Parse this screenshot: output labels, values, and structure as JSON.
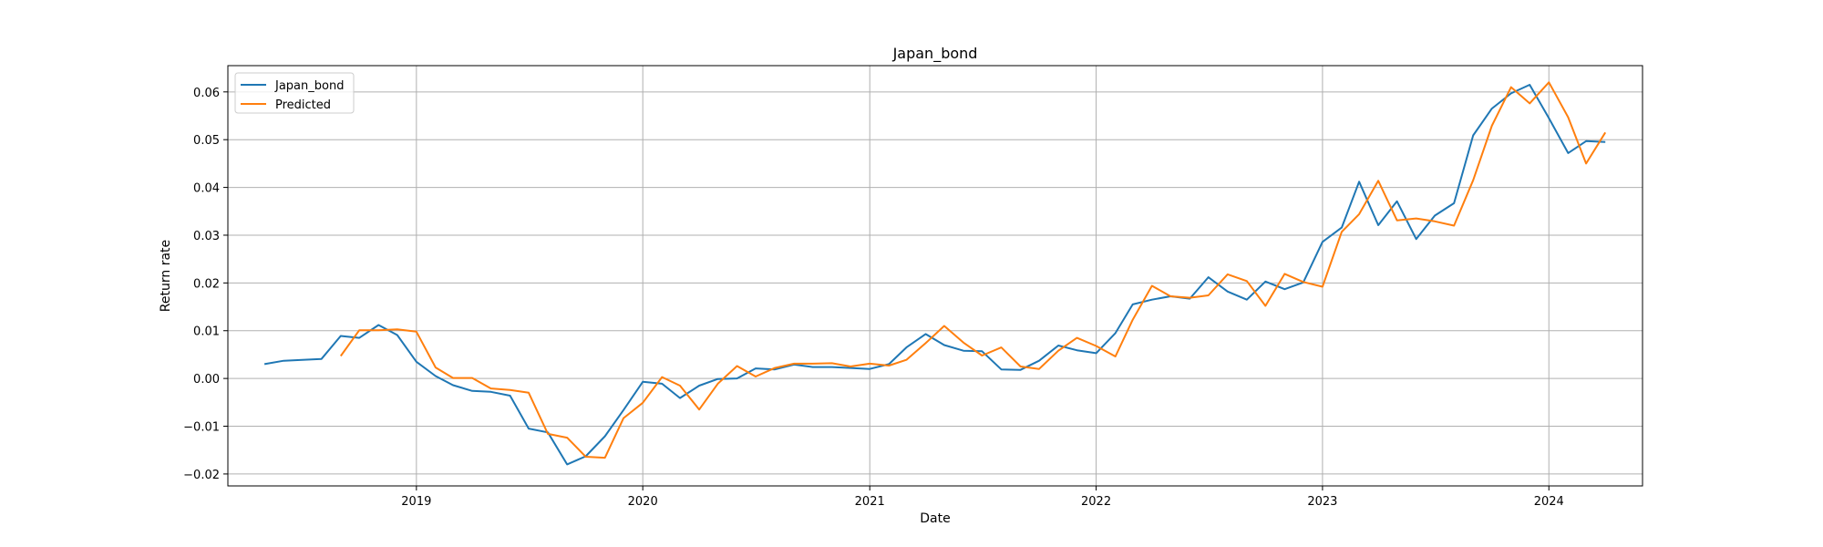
{
  "chart_data": {
    "type": "line",
    "title": "Japan_bond",
    "xlabel": "Date",
    "ylabel": "Return rate",
    "grid": true,
    "legend_position": "upper-left",
    "xlim": [
      "2018-03-03",
      "2024-05-31"
    ],
    "ylim": [
      -0.0225,
      0.0655
    ],
    "x_ticks": [
      "2019-01-01",
      "2020-01-01",
      "2021-01-01",
      "2022-01-01",
      "2023-01-01",
      "2024-01-01"
    ],
    "x_tick_labels": [
      "2019",
      "2020",
      "2021",
      "2022",
      "2023",
      "2024"
    ],
    "y_ticks": [
      -0.02,
      -0.01,
      0.0,
      0.01,
      0.02,
      0.03,
      0.04,
      0.05,
      0.06
    ],
    "y_tick_labels": [
      "−0.02",
      "−0.01",
      "0.00",
      "0.01",
      "0.02",
      "0.03",
      "0.04",
      "0.05",
      "0.06"
    ],
    "series": [
      {
        "name": "Japan_bond",
        "color": "#1f77b4",
        "x": [
          "2018-05-01",
          "2018-06-01",
          "2018-07-01",
          "2018-08-01",
          "2018-09-01",
          "2018-10-01",
          "2018-11-01",
          "2018-12-01",
          "2019-01-01",
          "2019-02-01",
          "2019-03-01",
          "2019-04-01",
          "2019-05-01",
          "2019-06-01",
          "2019-07-01",
          "2019-08-01",
          "2019-09-01",
          "2019-10-01",
          "2019-11-01",
          "2019-12-01",
          "2020-01-01",
          "2020-02-01",
          "2020-03-01",
          "2020-04-01",
          "2020-05-01",
          "2020-06-01",
          "2020-07-01",
          "2020-08-01",
          "2020-09-01",
          "2020-10-01",
          "2020-11-01",
          "2020-12-01",
          "2021-01-01",
          "2021-02-01",
          "2021-03-01",
          "2021-04-01",
          "2021-05-01",
          "2021-06-01",
          "2021-07-01",
          "2021-08-01",
          "2021-09-01",
          "2021-10-01",
          "2021-11-01",
          "2021-12-01",
          "2022-01-01",
          "2022-02-01",
          "2022-03-01",
          "2022-04-01",
          "2022-05-01",
          "2022-06-01",
          "2022-07-01",
          "2022-08-01",
          "2022-09-01",
          "2022-10-01",
          "2022-11-01",
          "2022-12-01",
          "2023-01-01",
          "2023-02-01",
          "2023-03-01",
          "2023-04-01",
          "2023-05-01",
          "2023-06-01",
          "2023-07-01",
          "2023-08-01",
          "2023-09-01",
          "2023-10-01",
          "2023-11-01",
          "2023-12-01",
          "2024-01-01",
          "2024-02-01",
          "2024-03-01",
          "2024-04-01"
        ],
        "values": [
          0.003,
          0.0037,
          0.0039,
          0.0041,
          0.0089,
          0.0085,
          0.0112,
          0.0091,
          0.0035,
          0.0005,
          -0.0014,
          -0.0026,
          -0.0028,
          -0.0036,
          -0.0105,
          -0.0113,
          -0.018,
          -0.0163,
          -0.0121,
          -0.0066,
          -0.0007,
          -0.0011,
          -0.0041,
          -0.0015,
          -0.0001,
          0.0,
          0.0021,
          0.0019,
          0.0029,
          0.0024,
          0.0024,
          0.0022,
          0.002,
          0.003,
          0.0065,
          0.0093,
          0.007,
          0.0058,
          0.0057,
          0.0019,
          0.0018,
          0.0037,
          0.0069,
          0.0059,
          0.0053,
          0.0095,
          0.0155,
          0.0165,
          0.0172,
          0.0167,
          0.0212,
          0.0182,
          0.0165,
          0.0203,
          0.0187,
          0.0201,
          0.0286,
          0.0316,
          0.0412,
          0.0321,
          0.0371,
          0.0292,
          0.0341,
          0.0367,
          0.0509,
          0.0565,
          0.0597,
          0.0615,
          0.0545,
          0.0472,
          0.0497,
          0.0495
        ]
      },
      {
        "name": "Predicted",
        "color": "#ff7f0e",
        "x": [
          "2018-09-01",
          "2018-10-01",
          "2018-11-01",
          "2018-12-01",
          "2019-01-01",
          "2019-02-01",
          "2019-03-01",
          "2019-04-01",
          "2019-05-01",
          "2019-06-01",
          "2019-07-01",
          "2019-08-01",
          "2019-09-01",
          "2019-10-01",
          "2019-11-01",
          "2019-12-01",
          "2020-01-01",
          "2020-02-01",
          "2020-03-01",
          "2020-04-01",
          "2020-05-01",
          "2020-06-01",
          "2020-07-01",
          "2020-08-01",
          "2020-09-01",
          "2020-10-01",
          "2020-11-01",
          "2020-12-01",
          "2021-01-01",
          "2021-02-01",
          "2021-03-01",
          "2021-04-01",
          "2021-05-01",
          "2021-06-01",
          "2021-07-01",
          "2021-08-01",
          "2021-09-01",
          "2021-10-01",
          "2021-11-01",
          "2021-12-01",
          "2022-01-01",
          "2022-02-01",
          "2022-03-01",
          "2022-04-01",
          "2022-05-01",
          "2022-06-01",
          "2022-07-01",
          "2022-08-01",
          "2022-09-01",
          "2022-10-01",
          "2022-11-01",
          "2022-12-01",
          "2023-01-01",
          "2023-02-01",
          "2023-03-01",
          "2023-04-01",
          "2023-05-01",
          "2023-06-01",
          "2023-07-01",
          "2023-08-01",
          "2023-09-01",
          "2023-10-01",
          "2023-11-01",
          "2023-12-01",
          "2024-01-01",
          "2024-02-01",
          "2024-03-01",
          "2024-04-01"
        ],
        "values": [
          0.0047,
          0.0101,
          0.0101,
          0.0103,
          0.0098,
          0.0023,
          0.0001,
          0.0001,
          -0.0021,
          -0.0024,
          -0.003,
          -0.0116,
          -0.0124,
          -0.0164,
          -0.0166,
          -0.0083,
          -0.0051,
          0.0003,
          -0.0015,
          -0.0065,
          -0.0011,
          0.0026,
          0.0004,
          0.0022,
          0.0031,
          0.0031,
          0.0032,
          0.0025,
          0.0031,
          0.0027,
          0.0039,
          0.0074,
          0.011,
          0.0075,
          0.0048,
          0.0065,
          0.0025,
          0.002,
          0.0058,
          0.0085,
          0.0068,
          0.0046,
          0.0123,
          0.0194,
          0.0172,
          0.0169,
          0.0174,
          0.0218,
          0.0204,
          0.0152,
          0.0219,
          0.0202,
          0.0192,
          0.0307,
          0.0344,
          0.0414,
          0.0331,
          0.0335,
          0.0329,
          0.032,
          0.0415,
          0.0529,
          0.061,
          0.0576,
          0.062,
          0.0547,
          0.045,
          0.0515
        ]
      }
    ]
  }
}
